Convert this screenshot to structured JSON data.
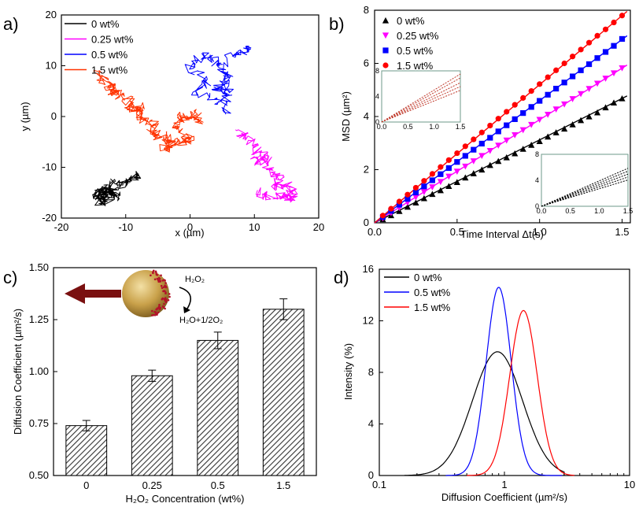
{
  "panels": {
    "a": {
      "letter": "a)",
      "xlabel": "x (µm)",
      "ylabel": "y (µm)"
    },
    "b": {
      "letter": "b)",
      "xlabel": "Time Interval Δt(s)",
      "ylabel": "MSD (µm²)"
    },
    "c": {
      "letter": "c)",
      "xlabel": "H₂O₂ Concentration (wt%)",
      "ylabel": "Diffusion Coefficient (µm²/s)",
      "reaction_top": "H₂O₂",
      "reaction_bottom": "H₂O+1/2O₂"
    },
    "d": {
      "letter": "d)",
      "xlabel": "Diffusion Coefficient (µm²/s)",
      "ylabel": "Intensity (%)"
    }
  },
  "chart_data": [
    {
      "type": "line",
      "panel": "a",
      "xlabel": "x (µm)",
      "ylabel": "y (µm)",
      "xlim": [
        -20,
        20
      ],
      "ylim": [
        -20,
        20
      ],
      "xticks": [
        "-20",
        "-10",
        "0",
        "10",
        "20"
      ],
      "yticks": [
        "-20",
        "-10",
        "0",
        "10",
        "20"
      ],
      "legend_position": "top-left",
      "series": [
        {
          "name": "0 wt%",
          "color": "#000000",
          "seed": 11,
          "steps": 220,
          "step": 0.75,
          "x": [
            -13.5,
            -14,
            -12,
            -15,
            -13,
            -12.5,
            -14.5,
            -13,
            -11.5,
            -12,
            -10.5,
            -9,
            -8
          ],
          "y": [
            -15.5,
            -17,
            -14,
            -16,
            -13.5,
            -16.5,
            -15,
            -14.5,
            -16,
            -13,
            -13.5,
            -12,
            -11.5
          ]
        },
        {
          "name": "0.25 wt%",
          "color": "#ff00ff",
          "seed": 27,
          "steps": 200,
          "step": 0.8,
          "x": [
            7.5,
            9,
            10.5,
            10,
            12,
            11.5,
            12.5,
            14,
            13,
            15,
            16,
            15.5,
            14.5,
            12,
            10.5
          ],
          "y": [
            -3,
            -4,
            -6,
            -8.5,
            -9,
            -7,
            -11,
            -12,
            -14,
            -13.5,
            -15,
            -16.5,
            -15.5,
            -16,
            -14.5
          ]
        },
        {
          "name": "0.5 wt%",
          "color": "#0000ff",
          "seed": 43,
          "steps": 190,
          "step": 0.8,
          "x": [
            6,
            4.5,
            1,
            2.5,
            0,
            2,
            3.5,
            5,
            5.5,
            4,
            6,
            5.5,
            6,
            8,
            9.5
          ],
          "y": [
            1,
            3,
            5,
            7,
            9.5,
            12,
            11,
            9.5,
            7,
            5,
            5.5,
            3,
            12,
            13,
            13.5
          ]
        },
        {
          "name": "1.5 wt%",
          "color": "#ff3300",
          "seed": 59,
          "steps": 320,
          "step": 0.85,
          "x": [
            -14.5,
            -13,
            -11.5,
            -12.5,
            -10,
            -9,
            -7.5,
            -8,
            -5.5,
            -6,
            -3,
            -4,
            -2,
            0,
            -2,
            -1.5,
            0.5,
            1.5
          ],
          "y": [
            8.5,
            7,
            4.5,
            6,
            3.5,
            1.5,
            2,
            0,
            -1.5,
            -3.5,
            -4,
            -6.5,
            -5,
            -4.5,
            -2.5,
            0,
            0.5,
            -1
          ]
        }
      ]
    },
    {
      "type": "scatter",
      "panel": "b",
      "xlabel": "Time Interval Δt(s)",
      "ylabel": "MSD (µm²)",
      "xlim": [
        0,
        1.55
      ],
      "ylim": [
        0,
        8
      ],
      "xticks": [
        "0.0",
        "0.5",
        "1.0",
        "1.5"
      ],
      "yticks": [
        "0",
        "2",
        "4",
        "6",
        "8"
      ],
      "legend_position": "top-left",
      "x": [
        0.05,
        0.1,
        0.15,
        0.2,
        0.25,
        0.3,
        0.35,
        0.4,
        0.45,
        0.5,
        0.55,
        0.6,
        0.65,
        0.7,
        0.75,
        0.8,
        0.85,
        0.9,
        0.95,
        1.0,
        1.05,
        1.1,
        1.15,
        1.2,
        1.25,
        1.3,
        1.35,
        1.4,
        1.45,
        1.5
      ],
      "series": [
        {
          "name": "0 wt%",
          "color": "#000000",
          "marker": "triangle-up",
          "slope": 3.12,
          "y": [
            0.13,
            0.28,
            0.44,
            0.6,
            0.76,
            0.92,
            1.08,
            1.22,
            1.38,
            1.53,
            1.7,
            1.86,
            2.0,
            2.17,
            2.32,
            2.46,
            2.61,
            2.78,
            2.93,
            3.07,
            3.24,
            3.4,
            3.54,
            3.7,
            3.86,
            4.0,
            4.15,
            4.34,
            4.52,
            4.68
          ]
        },
        {
          "name": "0.25 wt%",
          "color": "#ff00ff",
          "marker": "triangle-down",
          "slope": 3.88,
          "y": [
            0.17,
            0.37,
            0.56,
            0.76,
            0.96,
            1.16,
            1.34,
            1.54,
            1.74,
            1.93,
            2.12,
            2.32,
            2.52,
            2.71,
            2.91,
            3.1,
            3.3,
            3.49,
            3.69,
            3.88,
            4.07,
            4.27,
            4.46,
            4.66,
            4.85,
            5.04,
            5.24,
            5.43,
            5.63,
            5.82
          ]
        },
        {
          "name": "0.5 wt%",
          "color": "#0000ff",
          "marker": "square",
          "slope": 4.6,
          "y": [
            0.22,
            0.45,
            0.68,
            0.9,
            1.14,
            1.37,
            1.6,
            1.83,
            2.06,
            2.29,
            2.52,
            2.75,
            2.98,
            3.2,
            3.44,
            3.67,
            3.9,
            4.13,
            4.36,
            4.59,
            4.82,
            5.05,
            5.28,
            5.51,
            5.74,
            5.97,
            6.2,
            6.43,
            6.66,
            6.92
          ]
        },
        {
          "name": "1.5 wt%",
          "color": "#ff0000",
          "marker": "circle",
          "slope": 5.2,
          "y": [
            0.27,
            0.53,
            0.8,
            1.06,
            1.32,
            1.58,
            1.84,
            2.1,
            2.36,
            2.62,
            2.88,
            3.14,
            3.4,
            3.66,
            3.92,
            4.18,
            4.44,
            4.7,
            4.96,
            5.22,
            5.48,
            5.74,
            6.0,
            6.26,
            6.52,
            6.78,
            7.04,
            7.28,
            7.54,
            7.8
          ]
        }
      ],
      "insets": [
        {
          "position": "top-left",
          "xlim": [
            0,
            1.5
          ],
          "ylim": [
            0,
            8
          ],
          "xticks": [
            "0.0",
            "0.5",
            "1.0",
            "1.5"
          ],
          "yticks": [
            "0",
            "4",
            "8"
          ],
          "color": "#c0392b",
          "slopes": [
            5.0,
            4.6,
            4.1,
            3.7,
            3.3
          ]
        },
        {
          "position": "bottom-right",
          "xlim": [
            0,
            1.5
          ],
          "ylim": [
            0,
            8
          ],
          "xticks": [
            "0.0",
            "0.5",
            "1.0",
            "1.5"
          ],
          "yticks": [
            "0",
            "4",
            "8"
          ],
          "color": "#000000",
          "slopes": [
            3.9,
            3.6,
            3.3,
            3.0,
            2.7
          ]
        }
      ]
    },
    {
      "type": "bar",
      "panel": "c",
      "xlabel": "H₂O₂ Concentration (wt%)",
      "ylabel": "Diffusion Coefficient (µm²/s)",
      "categories": [
        "0",
        "0.25",
        "0.5",
        "1.5"
      ],
      "values": [
        0.74,
        0.98,
        1.15,
        1.3
      ],
      "errors": [
        0.025,
        0.027,
        0.04,
        0.05
      ],
      "ylim": [
        0.5,
        1.5
      ],
      "yticks": [
        "0.50",
        "0.75",
        "1.00",
        "1.25",
        "1.50"
      ],
      "bar_fill": "hatched"
    },
    {
      "type": "line",
      "panel": "d",
      "xlabel": "Diffusion Coefficient (µm²/s)",
      "ylabel": "Intensity (%)",
      "xscale": "log",
      "xlim": [
        0.1,
        10
      ],
      "ylim": [
        0,
        16
      ],
      "xticks": [
        "0.1",
        "1",
        "10"
      ],
      "yticks": [
        "0",
        "4",
        "8",
        "12",
        "16"
      ],
      "legend_position": "top-left",
      "series": [
        {
          "name": "0 wt%",
          "color": "#000000",
          "peak_x": 0.88,
          "peak_y": 9.6,
          "width": 0.2,
          "cut_low": 0.16,
          "cut_high": 3.0
        },
        {
          "name": "0.5 wt%",
          "color": "#0000ff",
          "peak_x": 0.9,
          "peak_y": 14.6,
          "width": 0.1,
          "cut_low": 0.34,
          "cut_high": 2.9
        },
        {
          "name": "1.5 wt%",
          "color": "#ff0000",
          "peak_x": 1.42,
          "peak_y": 12.8,
          "width": 0.11,
          "cut_low": 0.5,
          "cut_high": 3.6
        }
      ]
    }
  ]
}
